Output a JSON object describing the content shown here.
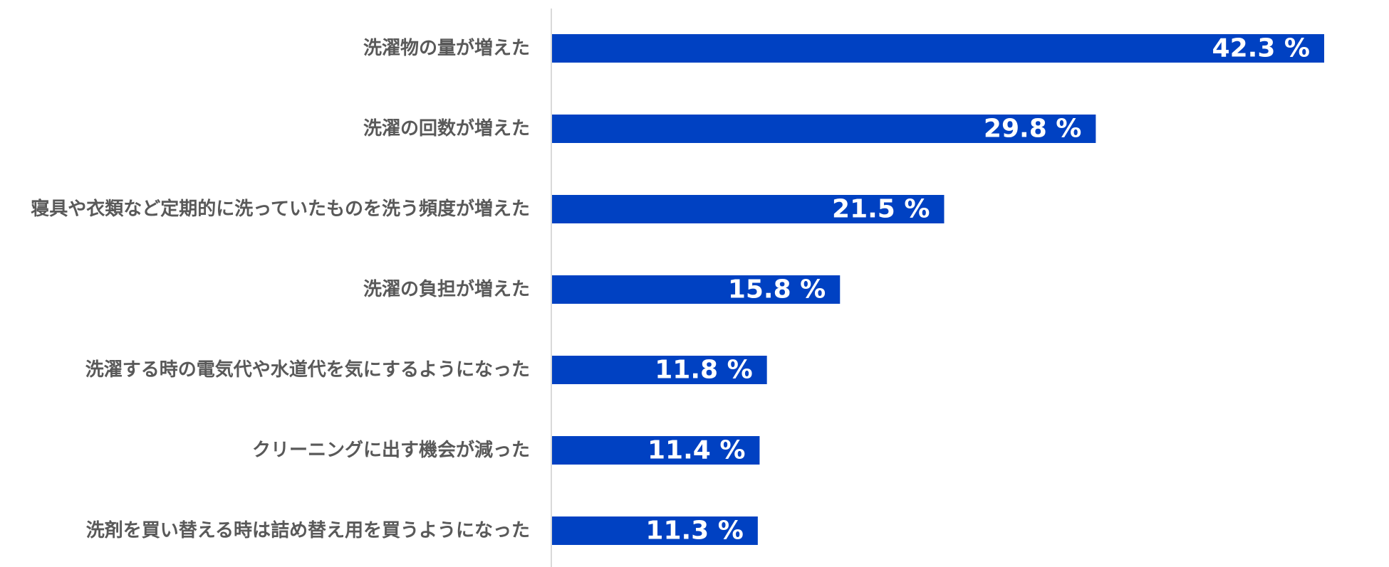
{
  "chart_data": {
    "type": "bar",
    "orientation": "horizontal",
    "categories": [
      "洗濯物の量が増えた",
      "洗濯の回数が増えた",
      "寝具や衣類など定期的に洗っていたものを洗う頻度が増えた",
      "洗濯の負担が増えた",
      "洗濯する時の電気代や水道代を気にするようになった",
      "クリーニングに出す機会が減った",
      "洗剤を買い替える時は詰め替え用を買うようになった"
    ],
    "values": [
      42.3,
      29.8,
      21.5,
      15.8,
      11.8,
      11.4,
      11.3
    ],
    "value_labels": [
      "42.3 %",
      "29.8 %",
      "21.5 %",
      "15.8 %",
      "11.8 %",
      "11.4 %",
      "11.3 %"
    ],
    "unit": "%",
    "xlim": [
      0,
      50
    ],
    "grid": false,
    "legend": "none",
    "bar_color": "#0041C2",
    "axis_color": "#D9D9D9",
    "label_color": "#595959",
    "value_label_color": "#FFFFFF"
  }
}
